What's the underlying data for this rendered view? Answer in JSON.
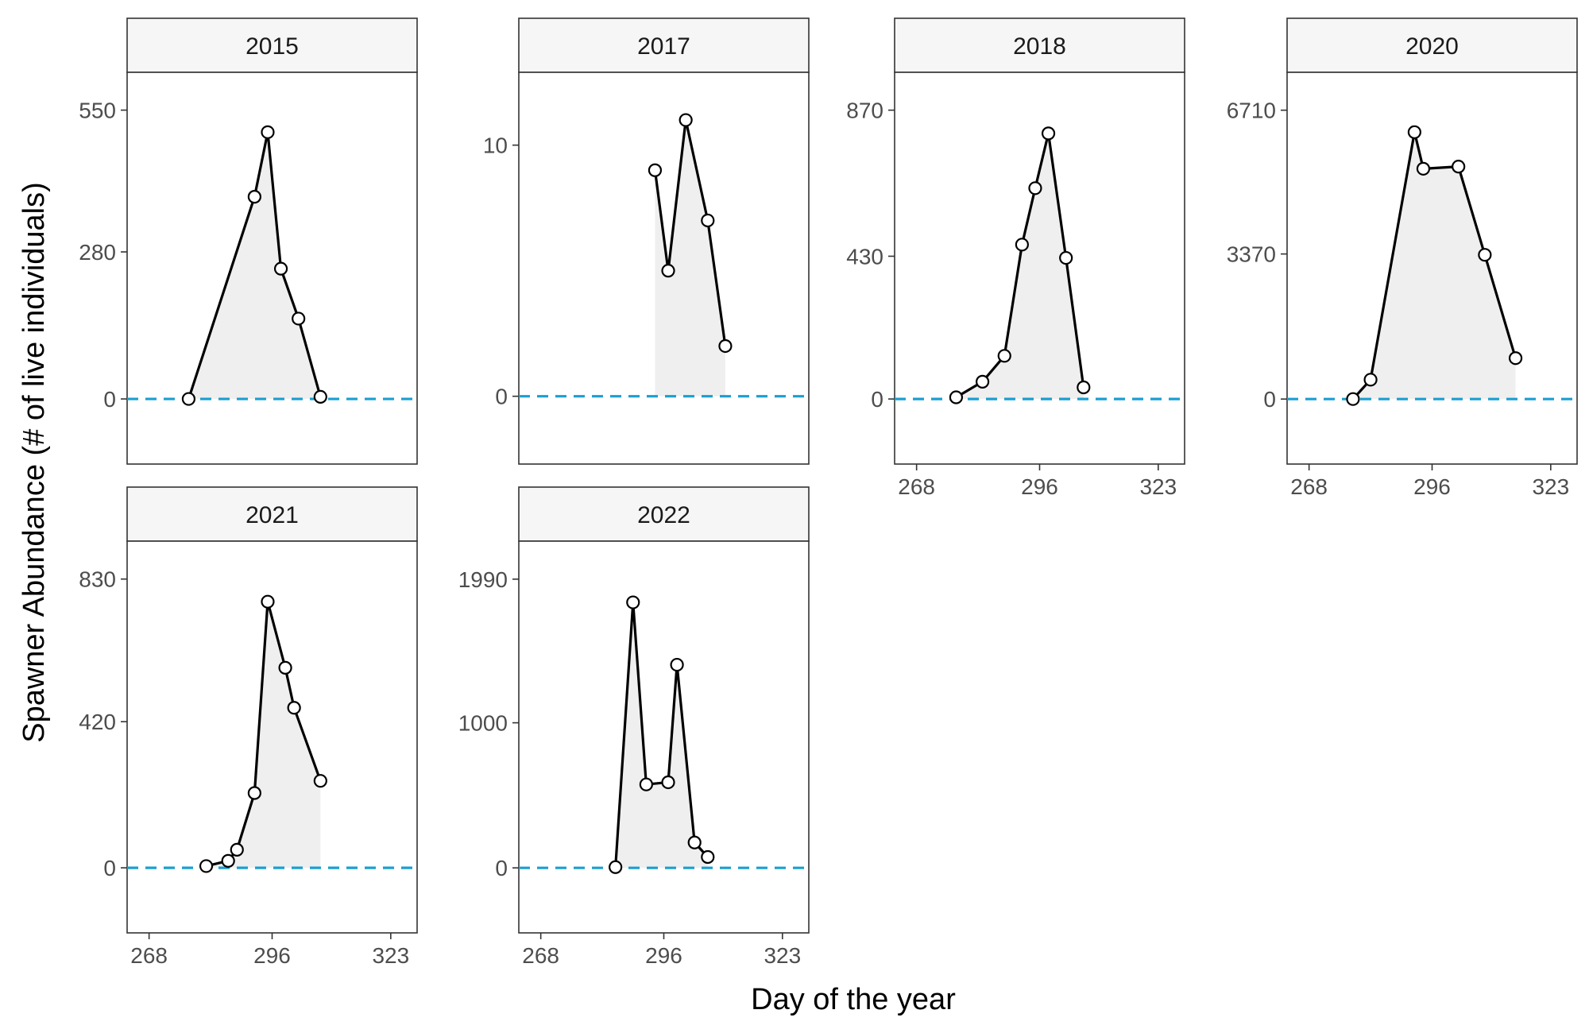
{
  "colors": {
    "zero_line": "#1a9fd1",
    "area": "#efefef",
    "line": "#000000"
  },
  "chart_data": {
    "type": "line",
    "facet": "wrap",
    "xlabel": "Day of the year",
    "ylabel": "Spawner Abundance (# of live individuals)",
    "xlim": [
      263,
      329
    ],
    "xticks": [
      268,
      296,
      323
    ],
    "grid": false,
    "reference_line": {
      "y": 0,
      "style": "dashed"
    },
    "panels": [
      {
        "label": "2015",
        "ylim": [
          -124,
          622
        ],
        "yticks": [
          0,
          280,
          550
        ],
        "x": [
          277,
          292,
          295,
          298,
          302,
          307
        ],
        "values": [
          0,
          385,
          508,
          248,
          153,
          4
        ]
      },
      {
        "label": "2017",
        "ylim": [
          -2.7,
          12.9
        ],
        "yticks": [
          0,
          10
        ],
        "x": [
          294,
          297,
          301,
          306,
          310
        ],
        "values": [
          9,
          5,
          11,
          7,
          2
        ]
      },
      {
        "label": "2018",
        "ylim": [
          -196,
          984
        ],
        "yticks": [
          0,
          430,
          870
        ],
        "x": [
          277,
          283,
          288,
          292,
          295,
          298,
          302,
          306
        ],
        "values": [
          5,
          52,
          130,
          465,
          635,
          800,
          425,
          35
        ]
      },
      {
        "label": "2020",
        "ylim": [
          -1510,
          7590
        ],
        "yticks": [
          0,
          3370,
          6710
        ],
        "x": [
          278,
          282,
          292,
          294,
          302,
          308,
          315
        ],
        "values": [
          0,
          450,
          6200,
          5350,
          5400,
          3350,
          950
        ]
      },
      {
        "label": "2021",
        "ylim": [
          -187,
          939
        ],
        "yticks": [
          0,
          420,
          830
        ],
        "x": [
          281,
          286,
          288,
          292,
          295,
          299,
          301,
          307
        ],
        "values": [
          5,
          20,
          52,
          215,
          765,
          575,
          460,
          250
        ]
      },
      {
        "label": "2022",
        "ylim": [
          -448,
          2252
        ],
        "yticks": [
          0,
          1000,
          1990
        ],
        "x": [
          285,
          289,
          292,
          297,
          299,
          303,
          306
        ],
        "values": [
          5,
          1830,
          575,
          590,
          1400,
          175,
          75
        ]
      }
    ]
  }
}
